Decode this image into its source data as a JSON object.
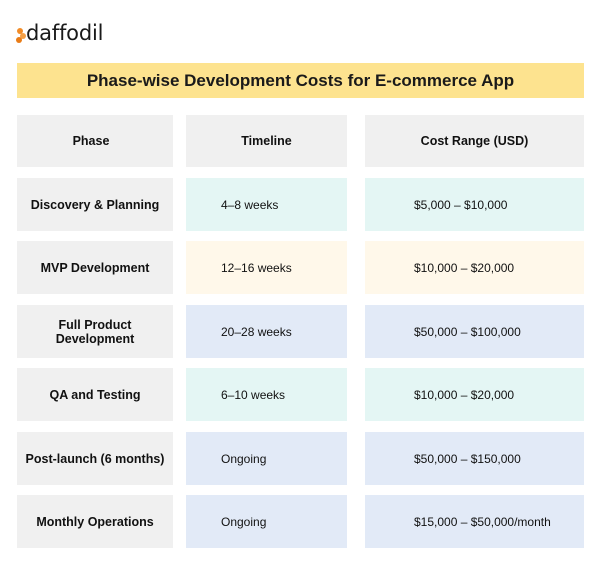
{
  "brand": {
    "logo_text": "daffodil",
    "accent_color": "#f28c28"
  },
  "title": "Phase-wise Development Costs for E-commerce App",
  "colors": {
    "title_bar": "#fde38f",
    "header_cell": "#f0f0f0",
    "teal": "#e4f6f4",
    "cream": "#fff8ea",
    "blue": "#e2eaf7"
  },
  "table": {
    "headers": {
      "phase": "Phase",
      "timeline": "Timeline",
      "cost": "Cost Range (USD)"
    },
    "rows": [
      {
        "phase": "Discovery & Planning",
        "timeline": "4–8 weeks",
        "cost": "$5,000 – $10,000"
      },
      {
        "phase": "MVP Development",
        "timeline": "12–16 weeks",
        "cost": "$10,000 – $20,000"
      },
      {
        "phase": "Full Product Development",
        "timeline": "20–28 weeks",
        "cost": "$50,000 – $100,000"
      },
      {
        "phase": "QA and Testing",
        "timeline": "6–10 weeks",
        "cost": "$10,000 – $20,000"
      },
      {
        "phase": "Post-launch (6 months)",
        "timeline": "Ongoing",
        "cost": "$50,000 – $150,000"
      },
      {
        "phase": "Monthly Operations",
        "timeline": "Ongoing",
        "cost": "$15,000 – $50,000/month"
      }
    ]
  }
}
